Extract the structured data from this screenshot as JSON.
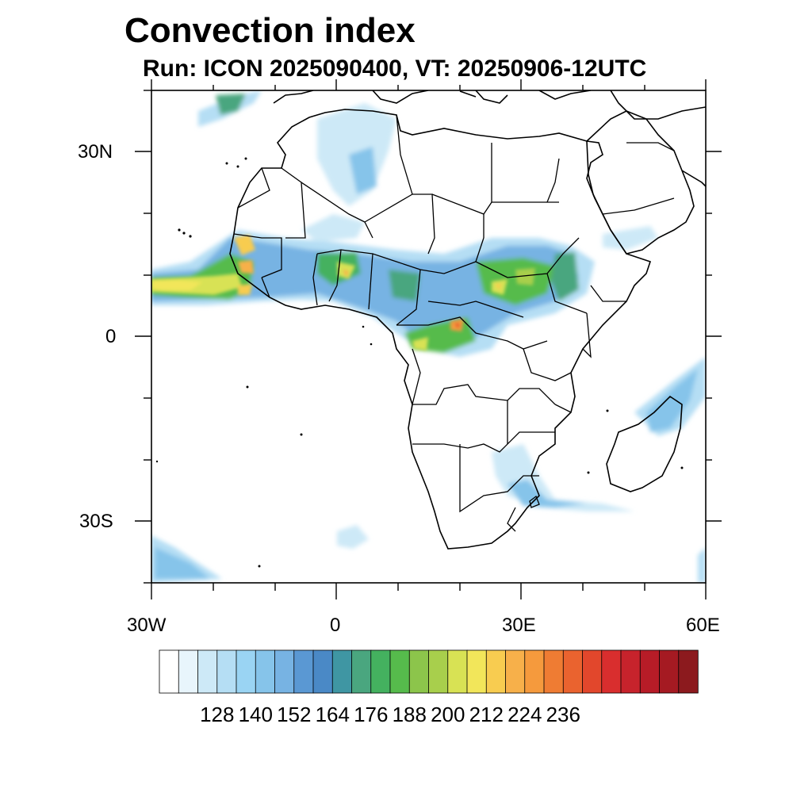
{
  "title": "Convection index",
  "subtitle": "Run: ICON 2025090400,  VT: 20250906-12UTC",
  "map": {
    "region": "Africa",
    "projection": "cylindrical equidistant",
    "lon_range": [
      -30,
      60
    ],
    "lat_range": [
      -40,
      40
    ],
    "lon_tick_labels": [
      "30W",
      "0",
      "30E",
      "60E"
    ],
    "lat_tick_labels": [
      "30N",
      "0",
      "30S"
    ]
  },
  "colorbar": {
    "tick_labels": [
      "128",
      "140",
      "152",
      "164",
      "176",
      "188",
      "200",
      "212",
      "224",
      "236"
    ],
    "colors": [
      "#ffffff",
      "#e8f5fc",
      "#cde9f7",
      "#b5def4",
      "#9ad4f3",
      "#86c4ea",
      "#77b3e3",
      "#5a98d3",
      "#4a89c6",
      "#3f96a3",
      "#4aa67f",
      "#44b15f",
      "#56bb4c",
      "#8cc54b",
      "#a8cf4c",
      "#d8e254",
      "#f2e65a",
      "#f8cc50",
      "#f7b04a",
      "#f59a3d",
      "#ef7c33",
      "#ea632f",
      "#e2472c",
      "#d92e2e",
      "#c7232c",
      "#b71c27",
      "#a51a22",
      "#8c1a1e"
    ]
  },
  "icons": [
    "convection-shading",
    "coastline",
    "country-borders"
  ]
}
